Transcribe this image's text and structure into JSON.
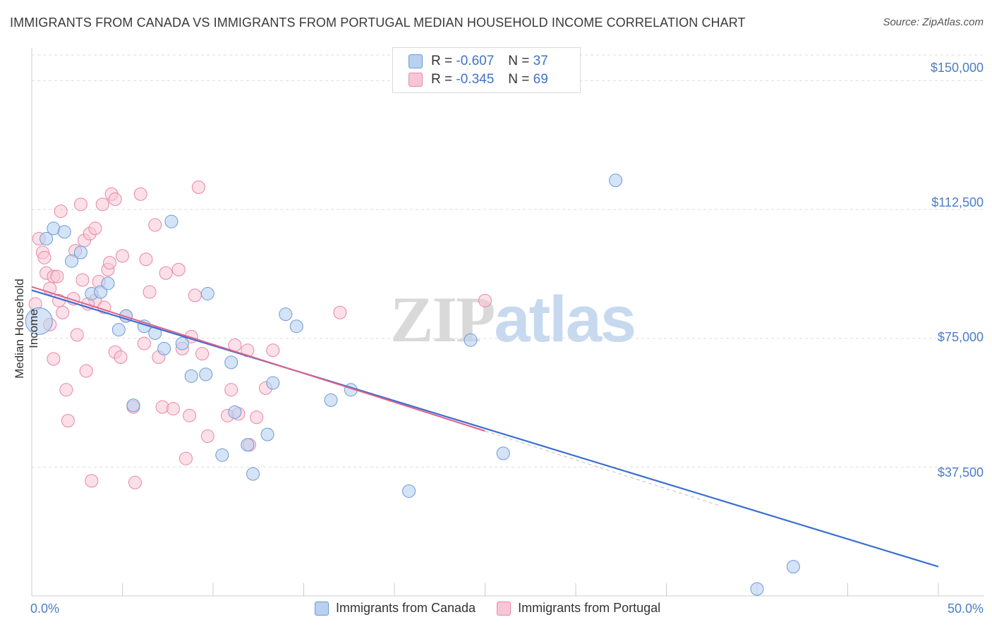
{
  "title": "IMMIGRANTS FROM CANADA VS IMMIGRANTS FROM PORTUGAL MEDIAN HOUSEHOLD INCOME CORRELATION CHART",
  "source": "Source: ZipAtlas.com",
  "watermark": {
    "zip": "ZIP",
    "atlas": "atlas"
  },
  "legend": {
    "rows": [
      {
        "r_label": "R = ",
        "r_value": "-0.607",
        "n_label": "N = ",
        "n_value": "37"
      },
      {
        "r_label": "R = ",
        "r_value": "-0.345",
        "n_label": "N = ",
        "n_value": "69"
      }
    ]
  },
  "chart_data": {
    "type": "scatter",
    "title": "IMMIGRANTS FROM CANADA VS IMMIGRANTS FROM PORTUGAL MEDIAN HOUSEHOLD INCOME CORRELATION CHART",
    "xlabel": "",
    "ylabel": "Median Household Income",
    "xlim": [
      0,
      50
    ],
    "ylim": [
      0,
      157500
    ],
    "x_tick_labels": [
      "0.0%",
      "50.0%"
    ],
    "y_ticks": [
      37500,
      75000,
      112500,
      150000
    ],
    "y_tick_labels": [
      "$37,500",
      "$75,000",
      "$112,500",
      "$150,000"
    ],
    "grid": true,
    "colors": {
      "canada": "#6a9bd8",
      "canada_fill": "#b9d0f0",
      "portugal": "#e985a6",
      "portugal_fill": "#f7c6d6",
      "canada_line": "#3a6fcf",
      "portugal_line": "#e0608a"
    },
    "series": [
      {
        "name": "Immigrants from Canada",
        "points": [
          [
            0.4,
            80000
          ],
          [
            0.8,
            104000
          ],
          [
            1.2,
            107000
          ],
          [
            1.8,
            106000
          ],
          [
            2.2,
            97500
          ],
          [
            2.7,
            100000
          ],
          [
            3.3,
            88000
          ],
          [
            3.8,
            88500
          ],
          [
            4.2,
            91000
          ],
          [
            4.8,
            77500
          ],
          [
            5.2,
            81500
          ],
          [
            5.6,
            55500
          ],
          [
            6.2,
            78500
          ],
          [
            6.8,
            76500
          ],
          [
            7.3,
            72000
          ],
          [
            7.7,
            109000
          ],
          [
            8.3,
            73500
          ],
          [
            8.8,
            64000
          ],
          [
            9.6,
            64500
          ],
          [
            9.7,
            88000
          ],
          [
            10.5,
            41000
          ],
          [
            11.0,
            68000
          ],
          [
            11.2,
            53500
          ],
          [
            11.9,
            44000
          ],
          [
            12.2,
            35500
          ],
          [
            13.0,
            47000
          ],
          [
            13.3,
            62000
          ],
          [
            14.0,
            82000
          ],
          [
            14.6,
            78500
          ],
          [
            16.5,
            57000
          ],
          [
            17.6,
            60000
          ],
          [
            20.8,
            30500
          ],
          [
            24.2,
            74500
          ],
          [
            26.0,
            41500
          ],
          [
            32.2,
            121000
          ],
          [
            42.0,
            8500
          ],
          [
            40.0,
            2000
          ]
        ],
        "sizes": "point radius 9; first point large (~19)",
        "trend": {
          "x": [
            0,
            50
          ],
          "y": [
            89000,
            8500
          ]
        }
      },
      {
        "name": "Immigrants from Portugal",
        "points": [
          [
            0.2,
            85000
          ],
          [
            0.4,
            104000
          ],
          [
            0.6,
            100000
          ],
          [
            0.7,
            98500
          ],
          [
            0.8,
            94000
          ],
          [
            1.0,
            89500
          ],
          [
            1.0,
            79000
          ],
          [
            1.2,
            93000
          ],
          [
            1.2,
            69000
          ],
          [
            1.5,
            86000
          ],
          [
            1.6,
            112000
          ],
          [
            1.7,
            82500
          ],
          [
            1.9,
            60000
          ],
          [
            2.0,
            51000
          ],
          [
            2.3,
            86500
          ],
          [
            2.4,
            100500
          ],
          [
            2.5,
            76000
          ],
          [
            2.7,
            114000
          ],
          [
            2.8,
            92000
          ],
          [
            2.9,
            103500
          ],
          [
            3.0,
            65500
          ],
          [
            3.2,
            105500
          ],
          [
            3.3,
            33500
          ],
          [
            3.5,
            86000
          ],
          [
            3.5,
            107000
          ],
          [
            3.7,
            91500
          ],
          [
            3.9,
            114000
          ],
          [
            4.0,
            84000
          ],
          [
            4.2,
            95000
          ],
          [
            4.3,
            97000
          ],
          [
            4.4,
            117000
          ],
          [
            4.6,
            115500
          ],
          [
            4.6,
            71000
          ],
          [
            4.9,
            69500
          ],
          [
            5.2,
            81500
          ],
          [
            5.6,
            55000
          ],
          [
            5.7,
            33000
          ],
          [
            6.0,
            117000
          ],
          [
            6.2,
            73500
          ],
          [
            6.5,
            88500
          ],
          [
            6.8,
            108000
          ],
          [
            7.0,
            69500
          ],
          [
            7.2,
            55000
          ],
          [
            7.4,
            94000
          ],
          [
            7.8,
            54500
          ],
          [
            8.1,
            95000
          ],
          [
            8.3,
            72000
          ],
          [
            8.5,
            40000
          ],
          [
            8.7,
            52500
          ],
          [
            8.8,
            75500
          ],
          [
            9.0,
            87500
          ],
          [
            9.2,
            119000
          ],
          [
            9.4,
            70500
          ],
          [
            9.7,
            46500
          ],
          [
            10.8,
            52500
          ],
          [
            11.0,
            60000
          ],
          [
            11.2,
            73000
          ],
          [
            11.4,
            53000
          ],
          [
            11.9,
            71500
          ],
          [
            12.0,
            44000
          ],
          [
            12.4,
            52000
          ],
          [
            12.9,
            60500
          ],
          [
            13.3,
            71500
          ],
          [
            17.0,
            82500
          ],
          [
            25.0,
            86000
          ],
          [
            3.1,
            85000
          ],
          [
            1.4,
            93000
          ],
          [
            5.0,
            99000
          ],
          [
            6.3,
            98000
          ]
        ],
        "trend": {
          "x": [
            0,
            25
          ],
          "y": [
            90000,
            48000
          ]
        }
      }
    ]
  },
  "bottom_legend": {
    "canada": "Immigrants from Canada",
    "portugal": "Immigrants from Portugal"
  }
}
